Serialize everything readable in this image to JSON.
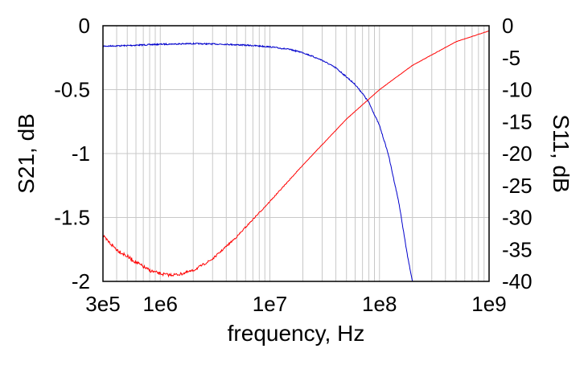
{
  "chart_data": {
    "type": "line",
    "xlabel": "frequency, Hz",
    "ylabel_left": "S21, dB",
    "ylabel_right": "S11, dB",
    "x_scale": "log",
    "xlim": [
      300000,
      1000000000
    ],
    "ylim_left": [
      -2,
      0
    ],
    "ylim_right": [
      -40,
      0
    ],
    "grid": true,
    "x_ticks": [
      {
        "value": 300000,
        "label": "3e5"
      },
      {
        "value": 1000000,
        "label": "1e6"
      },
      {
        "value": 10000000,
        "label": "1e7"
      },
      {
        "value": 100000000,
        "label": "1e8"
      },
      {
        "value": 1000000000,
        "label": "1e9"
      }
    ],
    "y_left_ticks": [
      {
        "value": 0,
        "label": "0"
      },
      {
        "value": -0.5,
        "label": "-0.5"
      },
      {
        "value": -1,
        "label": "-1"
      },
      {
        "value": -1.5,
        "label": "-1.5"
      },
      {
        "value": -2,
        "label": "-2"
      }
    ],
    "y_right_ticks": [
      {
        "value": 0,
        "label": "0"
      },
      {
        "value": -5,
        "label": "-5"
      },
      {
        "value": -10,
        "label": "-10"
      },
      {
        "value": -15,
        "label": "-15"
      },
      {
        "value": -20,
        "label": "-20"
      },
      {
        "value": -25,
        "label": "-25"
      },
      {
        "value": -30,
        "label": "-30"
      },
      {
        "value": -35,
        "label": "-35"
      },
      {
        "value": -40,
        "label": "-40"
      }
    ],
    "series": [
      {
        "axis": "left",
        "color": "#0000cc",
        "x": [
          300000,
          500000,
          1000000,
          2000000,
          4000000,
          7000000,
          10000000,
          15000000,
          20000000,
          30000000,
          40000000,
          50000000,
          60000000,
          70000000,
          80000000,
          100000000,
          120000000,
          150000000,
          180000000,
          200000000
        ],
        "y": [
          -0.16,
          -0.155,
          -0.145,
          -0.14,
          -0.145,
          -0.155,
          -0.165,
          -0.185,
          -0.21,
          -0.27,
          -0.33,
          -0.4,
          -0.46,
          -0.53,
          -0.6,
          -0.78,
          -1.0,
          -1.38,
          -1.8,
          -2.0
        ]
      },
      {
        "axis": "right",
        "color": "#ff0000",
        "x": [
          300000,
          400000,
          600000,
          800000,
          1000000,
          1200000,
          1500000,
          2000000,
          3000000,
          5000000,
          7000000,
          10000000,
          20000000,
          50000000,
          100000000,
          200000000,
          500000000,
          1000000000
        ],
        "y": [
          -33,
          -35,
          -37,
          -38.3,
          -38.8,
          -39,
          -38.9,
          -38.3,
          -36.5,
          -33,
          -30.3,
          -27.5,
          -21.8,
          -14.6,
          -10,
          -6.2,
          -2.5,
          -0.8
        ]
      }
    ]
  }
}
